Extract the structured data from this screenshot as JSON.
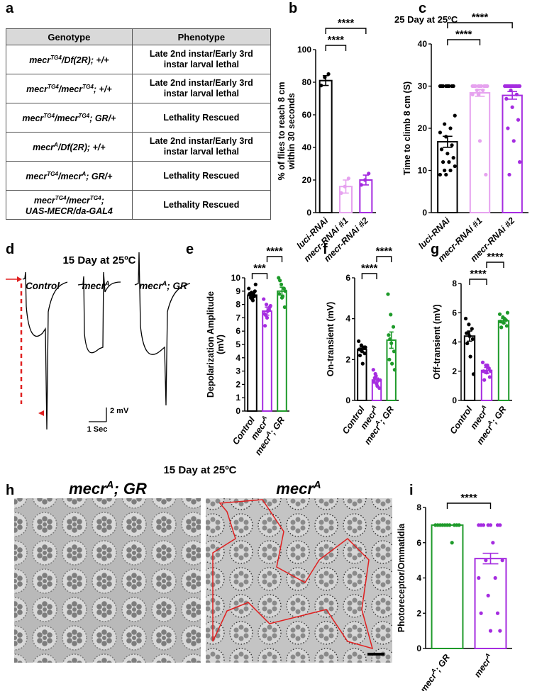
{
  "table": {
    "panel": "a",
    "header": [
      "Genotype",
      "Phenotype"
    ],
    "rows": [
      [
        [
          "mecr",
          "TG4",
          "/Df(2R); +/+"
        ],
        "Late 2nd instar/Early 3rd\ninstar  larval lethal"
      ],
      [
        [
          "mecr",
          "TG4",
          "/mecr",
          "TG4",
          "; +/+"
        ],
        "Late 2nd instar/Early 3rd\ninstar  larval lethal"
      ],
      [
        [
          "mecr",
          "TG4",
          "/mecr",
          "TG4",
          "; GR/+"
        ],
        "Lethality Rescued"
      ],
      [
        [
          "mecr",
          "A",
          "/Df(2R); +/+"
        ],
        "Late 2nd instar/Early 3rd\ninstar  larval lethal"
      ],
      [
        [
          "mecr",
          "TG4",
          "/mecr",
          "A",
          "; GR/+"
        ],
        "Lethality Rescued"
      ],
      [
        [
          "mecr",
          "TG4",
          "/mecr",
          "TG4",
          ";\nUAS-MECR/da-GAL4"
        ],
        "Lethality Rescued"
      ]
    ]
  },
  "chart_data": [
    {
      "panel": "b",
      "type": "bar",
      "ylabel": [
        "% of flies to reach 8 cm",
        "within 30 seconds"
      ],
      "categories": [
        [
          "luci-RNAi"
        ],
        [
          "mecr-RNAi #1"
        ],
        [
          "mecr-RNAi #2"
        ]
      ],
      "values": [
        81,
        16,
        20
      ],
      "errors": [
        3,
        4,
        3
      ],
      "points": [
        [
          78,
          83,
          85
        ],
        [
          12,
          16,
          21
        ],
        [
          17,
          20,
          24
        ]
      ],
      "colors": [
        "#000000",
        "#e6a2ef",
        "#a52ce0"
      ],
      "ylim": [
        0,
        100
      ],
      "yticks": [
        0,
        20,
        40,
        60,
        80,
        100
      ],
      "significance": [
        {
          "from": 0,
          "to": 1,
          "label": "****"
        },
        {
          "from": 0,
          "to": 2,
          "label": "****"
        }
      ]
    },
    {
      "panel": "c",
      "type": "bar",
      "title": "25 Day at 25ºC",
      "ylabel": [
        "Time to climb 8 cm (S)"
      ],
      "categories": [
        [
          "luci-RNAi"
        ],
        [
          "mecr-RNAi #1"
        ],
        [
          "mecr-RNAi #2"
        ]
      ],
      "values": [
        16.8,
        28.4,
        27.8
      ],
      "errors": [
        1.3,
        0.8,
        0.9
      ],
      "points": [
        [
          30,
          30,
          30,
          30,
          30,
          30,
          30,
          30,
          23,
          21,
          20,
          19,
          18,
          16,
          15,
          14,
          13,
          12,
          12,
          11,
          10,
          10,
          9,
          9
        ],
        [
          30,
          30,
          30,
          30,
          30,
          30,
          30,
          30,
          30,
          29,
          29,
          28,
          28,
          30,
          30,
          17,
          9
        ],
        [
          30,
          30,
          30,
          30,
          30,
          30,
          30,
          30,
          30,
          30,
          30,
          30,
          29,
          28,
          27,
          25,
          22,
          20,
          17,
          12,
          9
        ]
      ],
      "colors": [
        "#000000",
        "#e6a2ef",
        "#a52ce0"
      ],
      "ylim": [
        0,
        40
      ],
      "yticks": [
        0,
        10,
        20,
        30,
        40
      ],
      "significance": [
        {
          "from": 0,
          "to": 1,
          "label": "****"
        },
        {
          "from": 0,
          "to": 2,
          "label": "****"
        }
      ]
    },
    {
      "panel": "e",
      "type": "bar",
      "ylabel": [
        "Depolarization Amplitude",
        "(mV)"
      ],
      "categories": [
        [
          "Control"
        ],
        [
          "mecr",
          "A"
        ],
        [
          "mecr",
          "A",
          "; GR"
        ]
      ],
      "values": [
        8.7,
        7.5,
        9.0
      ],
      "errors": [
        0.2,
        0.3,
        0.3
      ],
      "points": [
        [
          9.2,
          8.9,
          8.6,
          8.8,
          8.4,
          9.0,
          8.7,
          8.3,
          9.5,
          8.5,
          8.8
        ],
        [
          8.4,
          8.0,
          7.6,
          7.3,
          7.0,
          7.8,
          6.4,
          7.5,
          7.9,
          7.2
        ],
        [
          10.0,
          9.5,
          9.2,
          8.8,
          8.5,
          7.8,
          9.8,
          8.6,
          9.0
        ]
      ],
      "colors": [
        "#000000",
        "#a52ce0",
        "#1e9a2a"
      ],
      "ylim": [
        0,
        10
      ],
      "yticks": [
        0,
        1,
        2,
        3,
        4,
        5,
        6,
        7,
        8,
        9,
        10
      ],
      "significance": [
        {
          "from": 0,
          "to": 1,
          "label": "***"
        },
        {
          "from": 1,
          "to": 2,
          "label": "****"
        }
      ]
    },
    {
      "panel": "f",
      "type": "bar",
      "ylabel": [
        "On-transient (mV)"
      ],
      "categories": [
        [
          "Control"
        ],
        [
          "mecr",
          "A"
        ],
        [
          "mecr",
          "A",
          "; GR"
        ]
      ],
      "values": [
        2.5,
        1.0,
        2.95
      ],
      "errors": [
        0.12,
        0.1,
        0.4
      ],
      "points": [
        [
          2.9,
          2.7,
          2.6,
          2.5,
          2.4,
          2.3,
          2.2,
          1.8,
          2.6,
          2.5
        ],
        [
          1.5,
          1.2,
          1.0,
          0.9,
          0.8,
          0.6,
          1.1,
          0.7,
          1.0,
          1.3
        ],
        [
          5.2,
          4.2,
          3.6,
          3.2,
          2.8,
          2.4,
          2.0,
          1.8,
          1.5,
          3.0
        ]
      ],
      "colors": [
        "#000000",
        "#a52ce0",
        "#1e9a2a"
      ],
      "ylim": [
        0,
        6
      ],
      "yticks": [
        0,
        2,
        4,
        6
      ],
      "significance": [
        {
          "from": 0,
          "to": 1,
          "label": "****"
        },
        {
          "from": 1,
          "to": 2,
          "label": "****"
        }
      ]
    },
    {
      "panel": "g",
      "type": "bar",
      "ylabel": [
        "Off-transient (mV)"
      ],
      "categories": [
        [
          "Control"
        ],
        [
          "mecr",
          "A"
        ],
        [
          "mecr",
          "A",
          "; GR"
        ]
      ],
      "values": [
        4.4,
        2.05,
        5.45
      ],
      "errors": [
        0.35,
        0.2,
        0.15
      ],
      "points": [
        [
          5.6,
          5.2,
          4.9,
          4.6,
          4.4,
          4.2,
          3.9,
          3.0,
          1.8,
          4.6
        ],
        [
          2.6,
          2.4,
          2.2,
          2.0,
          1.9,
          1.6,
          1.4,
          2.4,
          2.0
        ],
        [
          5.9,
          5.7,
          5.5,
          5.4,
          5.3,
          5.1,
          5.0,
          5.6,
          6.0
        ]
      ],
      "colors": [
        "#000000",
        "#a52ce0",
        "#1e9a2a"
      ],
      "ylim": [
        0,
        8
      ],
      "yticks": [
        0,
        2,
        4,
        6,
        8
      ],
      "significance": [
        {
          "from": 0,
          "to": 1,
          "label": "****"
        },
        {
          "from": 1,
          "to": 2,
          "label": "****"
        }
      ]
    },
    {
      "panel": "i",
      "type": "bar",
      "ylabel": [
        "Photoreceptor/Ommatidia"
      ],
      "categories": [
        [
          "mecr",
          "A",
          "; GR"
        ],
        [
          "mecr",
          "A"
        ]
      ],
      "values": [
        7,
        5.1
      ],
      "errors": [
        0,
        0.3
      ],
      "points": [
        [
          7,
          7,
          7,
          7,
          7,
          7,
          7,
          7,
          7,
          7,
          6
        ],
        [
          7,
          7,
          7,
          7,
          7,
          7,
          7,
          6,
          5,
          5,
          4,
          4,
          3,
          2,
          2,
          1,
          1
        ]
      ],
      "colors": [
        "#1e9a2a",
        "#a52ce0"
      ],
      "ylim": [
        0,
        8
      ],
      "yticks": [
        0,
        2,
        4,
        6,
        8
      ],
      "significance": [
        {
          "from": 0,
          "to": 1,
          "label": "****"
        }
      ]
    }
  ],
  "trace": {
    "panel": "d",
    "title": "15 Day at 25ºC",
    "labels": [
      [
        "Control"
      ],
      [
        "mecr",
        "A"
      ],
      [
        "mecr",
        "A",
        "; GR"
      ]
    ],
    "scale_y": "2 mV",
    "scale_x": "1 Sec"
  },
  "micrographs": {
    "panel": "h",
    "title": "15 Day at 25ºC",
    "labels": [
      [
        "mecr",
        "A",
        "; GR"
      ],
      [
        "mecr",
        "A"
      ]
    ]
  }
}
